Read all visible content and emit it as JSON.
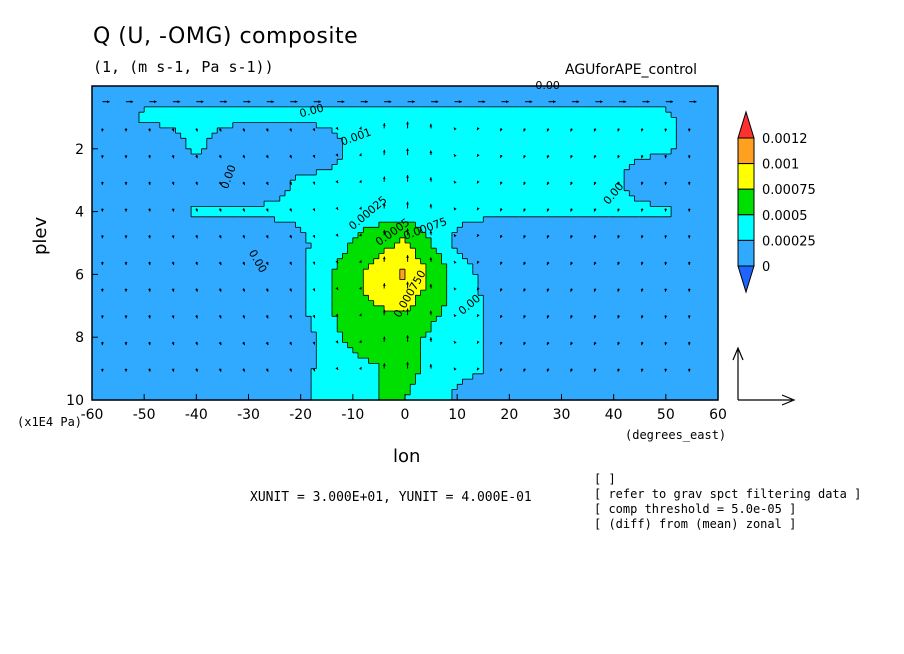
{
  "chart_data": {
    "type": "heatmap",
    "title": "Q (U, -OMG) composite",
    "subtitle": "(1, (m s-1, Pa s-1))",
    "dataset": "AGUforAPE_control",
    "xlabel": "lon",
    "ylabel": "plev",
    "xunit_label": "(degrees_east)",
    "yunit_label": "(x1E4 Pa)",
    "xlim": [
      -60,
      60
    ],
    "ylim": [
      10,
      0
    ],
    "x_ticks": [
      -60,
      -50,
      -40,
      -30,
      -20,
      -10,
      0,
      10,
      20,
      30,
      40,
      50,
      60
    ],
    "y_ticks": [
      2,
      4,
      6,
      8,
      10
    ],
    "x": [
      -60,
      -50,
      -40,
      -30,
      -20,
      -10,
      0,
      10,
      20,
      30,
      40,
      50,
      60
    ],
    "y": [
      0.2,
      1,
      2,
      3,
      4,
      5,
      6,
      7,
      8,
      9,
      10
    ],
    "values": [
      [
        0.00015,
        0.00015,
        0.00015,
        0.00015,
        0.00015,
        0.00015,
        0.00015,
        0.00015,
        0.00015,
        0.00015,
        0.00015,
        0.00015,
        0.00015
      ],
      [
        0.0,
        0.0003,
        0.0003,
        0.0003,
        0.0003,
        0.0003,
        0.0003,
        0.0003,
        0.0003,
        0.0003,
        0.0003,
        0.0003,
        0.0
      ],
      [
        0.0,
        0.0,
        0.0003,
        0.0,
        0.0,
        0.0003,
        0.0003,
        0.0003,
        0.0003,
        0.0003,
        0.0003,
        0.0003,
        0.0
      ],
      [
        0.0,
        0.0,
        0.0,
        0.0,
        0.0003,
        0.0003,
        0.0004,
        0.0003,
        0.0003,
        0.0003,
        0.0003,
        0.0,
        0.0
      ],
      [
        0.0,
        0.0,
        0.0003,
        0.0003,
        0.0003,
        0.0004,
        0.0004,
        0.0003,
        0.0003,
        0.0003,
        0.0003,
        0.0003,
        0.0
      ],
      [
        0.0,
        0.0,
        0.0,
        0.0,
        0.0002,
        0.0005,
        0.0008,
        0.0002,
        0.0,
        0.0,
        0.0,
        0.0,
        0.0
      ],
      [
        0.0,
        0.0,
        0.0,
        0.0,
        0.0002,
        0.0007,
        0.00105,
        0.0004,
        0.0,
        0.0,
        0.0,
        0.0,
        0.0
      ],
      [
        0.0,
        0.0,
        0.0001,
        0.0,
        0.0002,
        0.0007,
        0.0008,
        0.0004,
        0.0001,
        0.0002,
        0.0,
        0.0,
        0.0
      ],
      [
        0.0,
        0.0,
        0.0001,
        0.0,
        0.0001,
        0.0006,
        0.0006,
        0.0003,
        0.0002,
        0.0002,
        0.0,
        0.0001,
        0.0
      ],
      [
        0.0,
        0.0,
        0.0,
        0.0,
        0.0002,
        0.0004,
        0.0006,
        0.0003,
        0.0002,
        0.0,
        0.0,
        0.0002,
        0.0
      ],
      [
        0.0,
        0.0,
        0.0,
        0.0001,
        0.0002,
        0.0005,
        0.0005,
        0.0002,
        0.0002,
        0.0,
        0.0,
        0.0002,
        0.0
      ]
    ],
    "color_levels": [
      0,
      0.00025,
      0.0005,
      0.00075,
      0.001,
      0.0012
    ],
    "colorbar": {
      "labels": [
        "0.0012",
        "0.001",
        "0.00075",
        "0.0005",
        "0.00025",
        "0"
      ],
      "colors": [
        "#ff3030",
        "#ffa020",
        "#ffff00",
        "#00e000",
        "#00ffff",
        "#30aaff",
        "#1e64ff"
      ]
    },
    "contour_labels": [
      "0.00",
      "0.00",
      "0.001",
      "0.00",
      "0.00",
      "0.00025",
      "0.0005",
      "0.00075",
      "0.00",
      "0.00",
      "0.000750"
    ],
    "vector_reference": {
      "xunit": 30,
      "yunit": 0.4
    },
    "grid": false
  },
  "scale_text": "XUNIT = 3.000E+01, YUNIT = 4.000E-01",
  "notes": [
    "[  ]",
    "[ refer to grav spct filtering data ]",
    "[ comp threshold = 5.0e-05 ]",
    "[ (diff) from (mean) zonal ]"
  ]
}
